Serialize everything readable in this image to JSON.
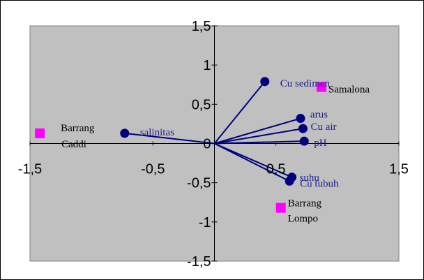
{
  "chart_data": {
    "type": "scatter",
    "title": "",
    "xlabel": "",
    "ylabel": "",
    "xlim": [
      -1.5,
      1.5
    ],
    "ylim": [
      -1.5,
      1.5
    ],
    "grid": false,
    "plot_background": "#c0c0c0",
    "x_ticks": [
      {
        "value": -1.5,
        "label": "-1,5"
      },
      {
        "value": -0.5,
        "label": "-0,5"
      },
      {
        "value": 0.5,
        "label": "0,5"
      },
      {
        "value": 1.5,
        "label": "1,5"
      }
    ],
    "y_ticks": [
      {
        "value": 1.5,
        "label": "1,5"
      },
      {
        "value": 1,
        "label": "1"
      },
      {
        "value": 0.5,
        "label": "0,5"
      },
      {
        "value": 0,
        "label": "0"
      },
      {
        "value": -0.5,
        "label": "-0,5"
      },
      {
        "value": -1,
        "label": "-1"
      },
      {
        "value": -1.5,
        "label": "-1,5"
      }
    ],
    "variables": {
      "color": "#00007f",
      "points": [
        {
          "label": "Cu sedimen",
          "x": 0.41,
          "y": 0.79
        },
        {
          "label": "arus",
          "x": 0.7,
          "y": 0.32
        },
        {
          "label": "Cu air",
          "x": 0.72,
          "y": 0.19
        },
        {
          "label": "pH",
          "x": 0.73,
          "y": 0.03
        },
        {
          "label": "salinitas",
          "x": -0.73,
          "y": 0.13
        },
        {
          "label": "suhu",
          "x": 0.63,
          "y": -0.43
        },
        {
          "label": "Cu tubuh",
          "x": 0.61,
          "y": -0.48
        }
      ]
    },
    "sites": {
      "color": "#ff00ff",
      "points": [
        {
          "label": "Samalona",
          "x": 0.87,
          "y": 0.72
        },
        {
          "label": "Barrang Caddi",
          "x": -1.42,
          "y": 0.13
        },
        {
          "label": "Barrang Lompo",
          "x": 0.54,
          "y": -0.82
        }
      ]
    }
  }
}
